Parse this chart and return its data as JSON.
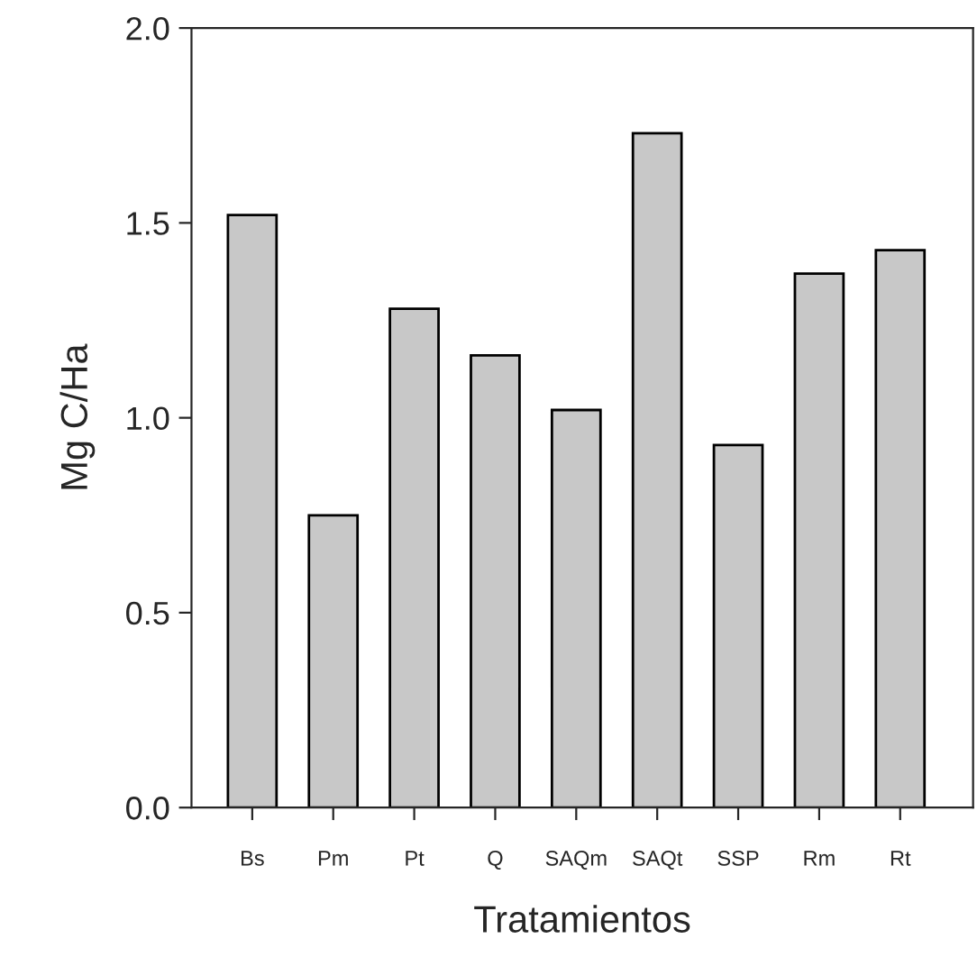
{
  "chart_data": {
    "type": "bar",
    "xlabel": "Tratamientos",
    "ylabel": "Mg C/Ha",
    "categories": [
      "Bs",
      "Pm",
      "Pt",
      "Q",
      "SAQm",
      "SAQt",
      "SSP",
      "Rm",
      "Rt"
    ],
    "values": [
      1.52,
      0.75,
      1.28,
      1.16,
      1.02,
      1.73,
      0.93,
      1.37,
      1.43
    ],
    "color": "#c8c8c8",
    "ylim": [
      0,
      2.0
    ],
    "yticks": [
      {
        "value": 0,
        "label": "0.0"
      },
      {
        "value": 0.5,
        "label": "0.5"
      },
      {
        "value": 1.0,
        "label": "1.0"
      },
      {
        "value": 1.5,
        "label": "1.5"
      },
      {
        "value": 2.0,
        "label": "2.0"
      }
    ],
    "grid": false,
    "legend": false
  }
}
